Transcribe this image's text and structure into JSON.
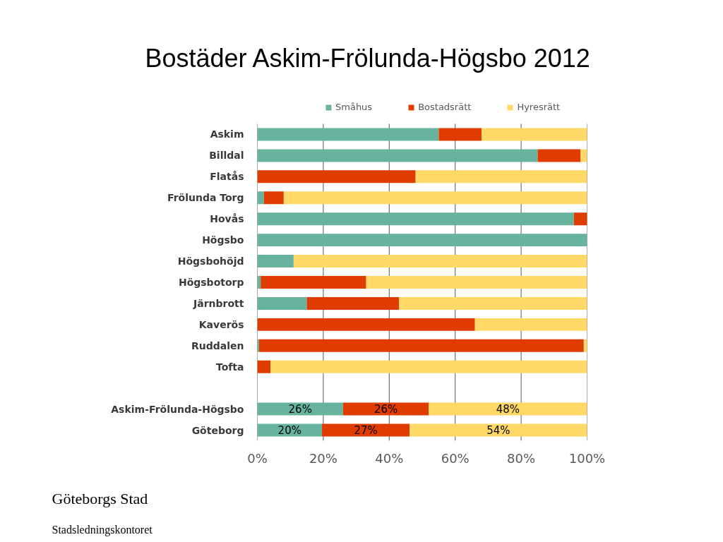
{
  "chart_data": {
    "type": "bar",
    "orientation": "horizontal",
    "stacked": true,
    "title": "Bostäder Askim-Frölunda-Högsbo 2012",
    "categories": [
      "Askim",
      "Billdal",
      "Flatås",
      "Frölunda Torg",
      "Hovås",
      "Högsbo",
      "Högsbohöjd",
      "Högsbotorp",
      "Järnbrott",
      "Kaverös",
      "Ruddalen",
      "Tofta",
      null,
      "Askim-Frölunda-Högsbo",
      "Göteborg"
    ],
    "series": [
      {
        "name": "Småhus",
        "color": "#67b39e",
        "values": [
          55,
          85,
          0,
          2,
          96,
          100,
          11,
          1,
          15,
          0,
          0.5,
          0,
          null,
          26,
          19.6
        ],
        "value_labels": [
          null,
          null,
          null,
          null,
          null,
          null,
          null,
          null,
          null,
          null,
          null,
          null,
          null,
          "26%",
          "20%"
        ]
      },
      {
        "name": "Bostadsrätt",
        "color": "#e03c00",
        "values": [
          13,
          13,
          48,
          6,
          4,
          0,
          0,
          32,
          28,
          66,
          98.5,
          4,
          null,
          26,
          26.6
        ],
        "value_labels": [
          null,
          null,
          null,
          null,
          null,
          null,
          null,
          null,
          null,
          null,
          null,
          null,
          null,
          "26%",
          "27%"
        ]
      },
      {
        "name": "Hyresrätt",
        "color": "#ffd866",
        "values": [
          32,
          2,
          52,
          92,
          0,
          0,
          89,
          67,
          57,
          34,
          1,
          96,
          null,
          48,
          53.8
        ],
        "value_labels": [
          null,
          null,
          null,
          null,
          null,
          null,
          null,
          null,
          null,
          null,
          null,
          null,
          null,
          "48%",
          "54%"
        ]
      }
    ],
    "xlim": [
      0,
      100
    ],
    "xticks": [
      {
        "value": 0,
        "label": "0%"
      },
      {
        "value": 20,
        "label": "20%"
      },
      {
        "value": 40,
        "label": "40%"
      },
      {
        "value": 60,
        "label": "60%"
      },
      {
        "value": 80,
        "label": "80%"
      },
      {
        "value": 100,
        "label": "100%"
      }
    ],
    "grid": "x",
    "legend": "top",
    "annotations": [
      "Göteborgs Stad",
      "Stadsledningskontoret"
    ]
  }
}
